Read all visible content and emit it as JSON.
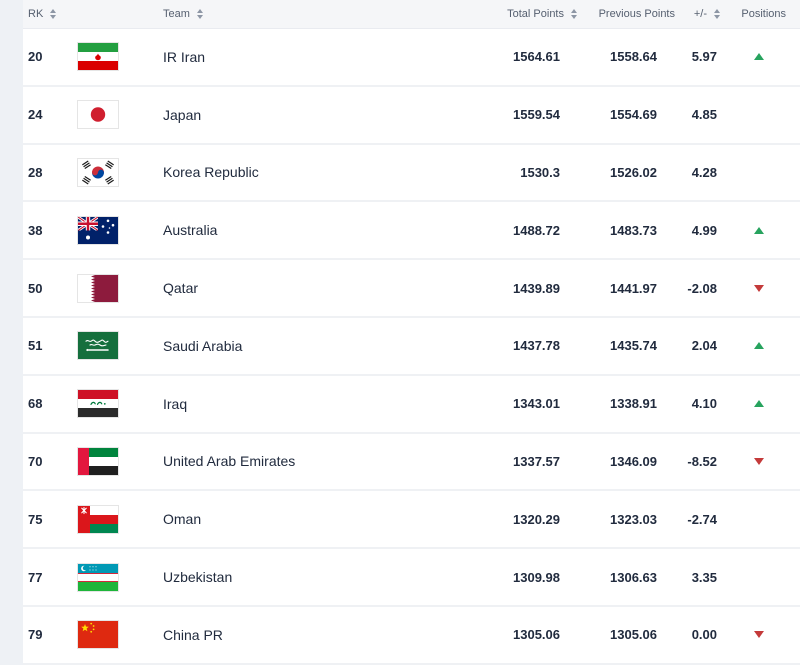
{
  "header": {
    "rk_label": "RK",
    "team_label": "Team",
    "total_points_label": "Total Points",
    "previous_points_label": "Previous Points",
    "change_label": "+/-",
    "positions_label": "Positions"
  },
  "icons": {
    "sort": "double-caret-sort",
    "position_up": "caret-up",
    "position_down": "caret-down"
  },
  "colors": {
    "positive": "#27a35e",
    "negative": "#c43a3a",
    "header_text": "#566070",
    "row_text": "#212b3e"
  },
  "rows": [
    {
      "rank": "20",
      "team": "IR Iran",
      "flag": "iran",
      "total_points": "1564.61",
      "previous_points": "1558.64",
      "change": "5.97",
      "trend": "up"
    },
    {
      "rank": "24",
      "team": "Japan",
      "flag": "japan",
      "total_points": "1559.54",
      "previous_points": "1554.69",
      "change": "4.85",
      "trend": "none"
    },
    {
      "rank": "28",
      "team": "Korea Republic",
      "flag": "korea",
      "total_points": "1530.3",
      "previous_points": "1526.02",
      "change": "4.28",
      "trend": "none"
    },
    {
      "rank": "38",
      "team": "Australia",
      "flag": "australia",
      "total_points": "1488.72",
      "previous_points": "1483.73",
      "change": "4.99",
      "trend": "up"
    },
    {
      "rank": "50",
      "team": "Qatar",
      "flag": "qatar",
      "total_points": "1439.89",
      "previous_points": "1441.97",
      "change": "-2.08",
      "trend": "down"
    },
    {
      "rank": "51",
      "team": "Saudi Arabia",
      "flag": "saudi",
      "total_points": "1437.78",
      "previous_points": "1435.74",
      "change": "2.04",
      "trend": "up"
    },
    {
      "rank": "68",
      "team": "Iraq",
      "flag": "iraq",
      "total_points": "1343.01",
      "previous_points": "1338.91",
      "change": "4.10",
      "trend": "up"
    },
    {
      "rank": "70",
      "team": "United Arab Emirates",
      "flag": "uae",
      "total_points": "1337.57",
      "previous_points": "1346.09",
      "change": "-8.52",
      "trend": "down"
    },
    {
      "rank": "75",
      "team": "Oman",
      "flag": "oman",
      "total_points": "1320.29",
      "previous_points": "1323.03",
      "change": "-2.74",
      "trend": "none"
    },
    {
      "rank": "77",
      "team": "Uzbekistan",
      "flag": "uzbekistan",
      "total_points": "1309.98",
      "previous_points": "1306.63",
      "change": "3.35",
      "trend": "none"
    },
    {
      "rank": "79",
      "team": "China PR",
      "flag": "china",
      "total_points": "1305.06",
      "previous_points": "1305.06",
      "change": "0.00",
      "trend": "down"
    }
  ]
}
